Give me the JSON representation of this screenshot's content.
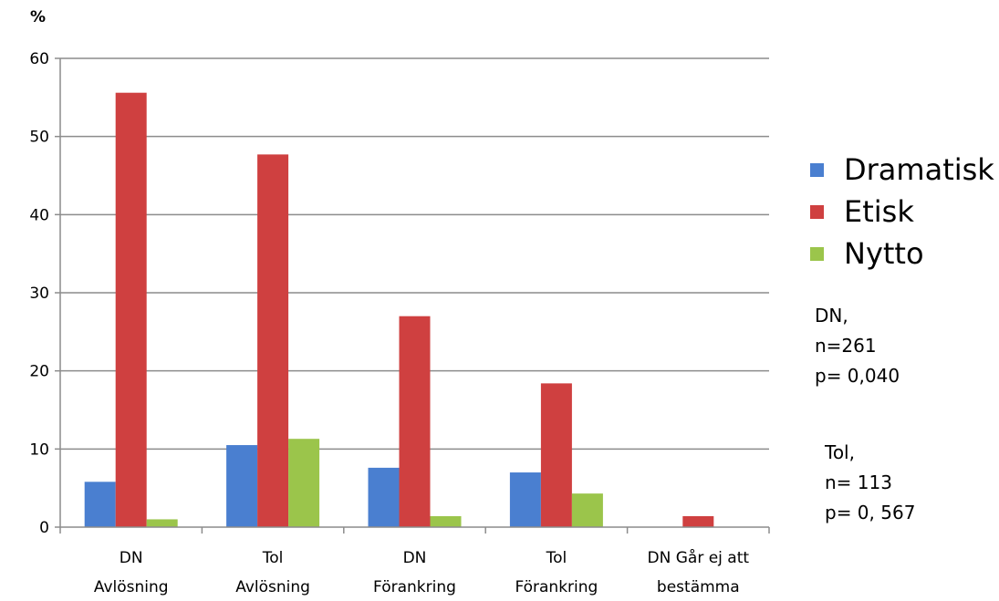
{
  "chart_data": {
    "type": "bar",
    "ylabel": "%",
    "ylim": [
      0,
      60
    ],
    "yticks": [
      "0",
      "10",
      "20",
      "30",
      "40",
      "50",
      "60"
    ],
    "grid": true,
    "legend_position": "right",
    "categories": [
      [
        "DN",
        "Avlösning"
      ],
      [
        "Tol",
        "Avlösning"
      ],
      [
        "DN",
        "Förankring"
      ],
      [
        "Tol",
        "Förankring"
      ],
      [
        "DN Går ej att",
        "bestämma"
      ]
    ],
    "series": [
      {
        "name": "Dramatisk",
        "color": "#4a7fd0",
        "values": [
          5.8,
          10.5,
          7.6,
          7.0,
          0
        ]
      },
      {
        "name": "Etisk",
        "color": "#cf4040",
        "values": [
          55.6,
          47.7,
          27.0,
          18.4,
          1.4
        ]
      },
      {
        "name": "Nytto",
        "color": "#9bc54b",
        "values": [
          1.0,
          11.3,
          1.4,
          4.3,
          0
        ]
      }
    ]
  },
  "notes": {
    "dn": [
      "DN,",
      "n=261",
      "p= 0,040"
    ],
    "tol": [
      "Tol,",
      "n= 113",
      "p= 0, 567"
    ]
  }
}
